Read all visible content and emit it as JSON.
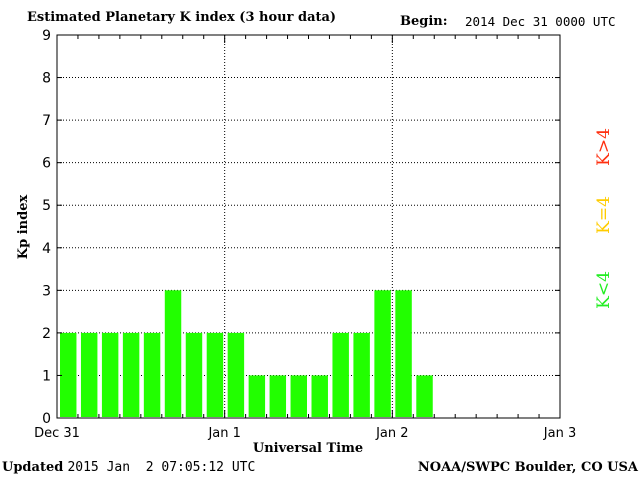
{
  "header": {
    "title": "Estimated Planetary K index (3 hour data)",
    "begin_label": "Begin:",
    "begin_value": "2014 Dec 31 0000 UTC"
  },
  "footer": {
    "updated_label": "Updated",
    "updated_value": "2015 Jan  2 07:05:12 UTC",
    "credit": "NOAA/SWPC Boulder, CO USA"
  },
  "legend": [
    {
      "label": "K>4",
      "color": "#ff3010"
    },
    {
      "label": "K=4",
      "color": "#ffcc00"
    },
    {
      "label": "K<4",
      "color": "#22ee22"
    }
  ],
  "chart_data": {
    "type": "bar",
    "title": "Estimated Planetary K index (3 hour data)",
    "xlabel": "Universal Time",
    "ylabel": "Kp index",
    "ylim": [
      0,
      9
    ],
    "yticks": [
      "0",
      "1",
      "2",
      "3",
      "4",
      "5",
      "6",
      "7",
      "8",
      "9"
    ],
    "xticks": [
      "Dec 31",
      "Jan 1",
      "Jan 2",
      "Jan 3"
    ],
    "interval_hours": 3,
    "values": [
      2,
      2,
      2,
      2,
      2,
      3,
      2,
      2,
      2,
      1,
      1,
      1,
      1,
      2,
      2,
      3,
      3,
      1
    ],
    "bar_color": "#22ff00",
    "grid": true
  }
}
